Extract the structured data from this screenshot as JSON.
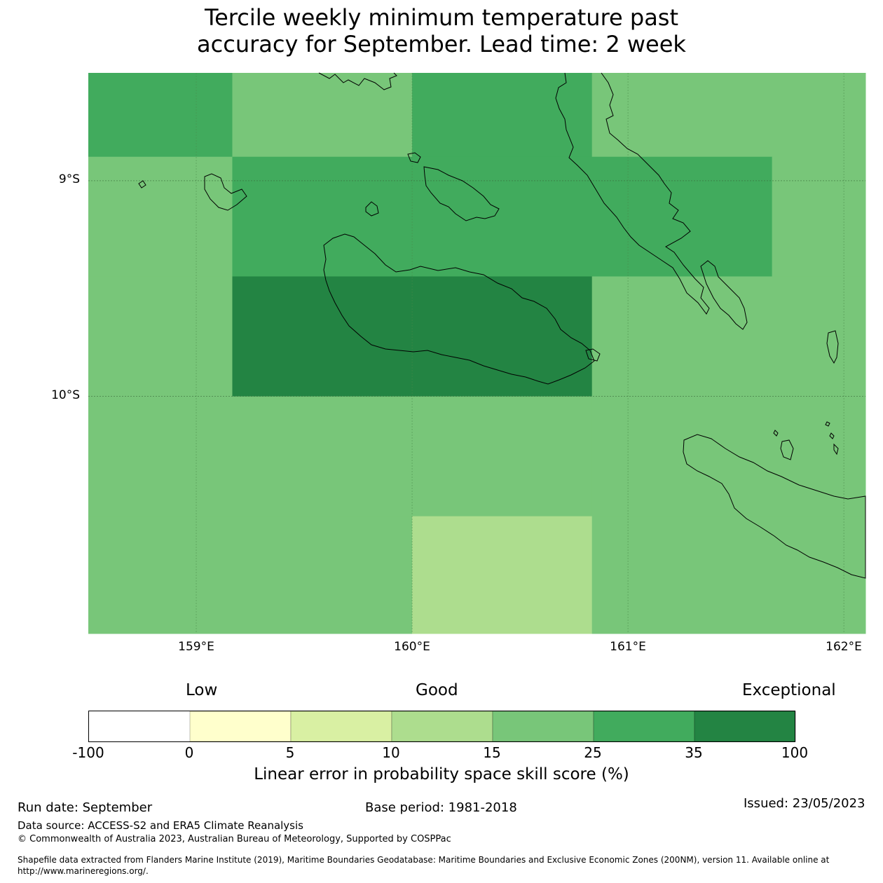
{
  "title": {
    "line1": "Tercile weekly minimum temperature past",
    "line2": "accuracy for September. Lead time: 2 week"
  },
  "map": {
    "lon_range": [
      158.5,
      162.1
    ],
    "lat_range": [
      -11.1,
      -8.5
    ],
    "lat_ticks": [
      {
        "value": -9,
        "label": "9°S"
      },
      {
        "value": -10,
        "label": "10°S"
      }
    ],
    "lon_ticks": [
      {
        "value": 159,
        "label": "159°E"
      },
      {
        "value": 160,
        "label": "160°E"
      },
      {
        "value": 161,
        "label": "161°E"
      },
      {
        "value": 162,
        "label": "162°E"
      }
    ],
    "cells": [
      {
        "lon": [
          158.5,
          159.167
        ],
        "lat": [
          -8.5,
          -8.889
        ],
        "category": 5
      },
      {
        "lon": [
          159.167,
          160.0
        ],
        "lat": [
          -8.5,
          -8.889
        ],
        "category": 4
      },
      {
        "lon": [
          160.0,
          160.833
        ],
        "lat": [
          -8.5,
          -8.889
        ],
        "category": 5
      },
      {
        "lon": [
          160.833,
          162.1
        ],
        "lat": [
          -8.5,
          -8.889
        ],
        "category": 4
      },
      {
        "lon": [
          158.5,
          159.167
        ],
        "lat": [
          -8.889,
          -9.444
        ],
        "category": 4
      },
      {
        "lon": [
          159.167,
          161.667
        ],
        "lat": [
          -8.889,
          -9.444
        ],
        "category": 5
      },
      {
        "lon": [
          161.667,
          162.1
        ],
        "lat": [
          -8.889,
          -9.444
        ],
        "category": 4
      },
      {
        "lon": [
          158.5,
          159.167
        ],
        "lat": [
          -9.444,
          -10.0
        ],
        "category": 4
      },
      {
        "lon": [
          159.167,
          160.833
        ],
        "lat": [
          -9.444,
          -10.0
        ],
        "category": 6
      },
      {
        "lon": [
          160.833,
          162.1
        ],
        "lat": [
          -9.444,
          -10.0
        ],
        "category": 4
      },
      {
        "lon": [
          158.5,
          160.0
        ],
        "lat": [
          -10.0,
          -10.556
        ],
        "category": 4
      },
      {
        "lon": [
          160.0,
          160.833
        ],
        "lat": [
          -10.0,
          -10.556
        ],
        "category": 4
      },
      {
        "lon": [
          160.833,
          162.1
        ],
        "lat": [
          -10.0,
          -10.556
        ],
        "category": 4
      },
      {
        "lon": [
          158.5,
          160.0
        ],
        "lat": [
          -10.556,
          -11.1
        ],
        "category": 4
      },
      {
        "lon": [
          160.0,
          160.833
        ],
        "lat": [
          -10.556,
          -11.1
        ],
        "category": 3
      },
      {
        "lon": [
          160.833,
          162.1
        ],
        "lat": [
          -10.556,
          -11.1
        ],
        "category": 4
      }
    ]
  },
  "chart_data": {
    "type": "heatmap",
    "title": "Tercile weekly minimum temperature past accuracy for September. Lead time: 2 week",
    "xlabel": "",
    "ylabel": "",
    "xlim": [
      158.5,
      162.1
    ],
    "ylim": [
      -11.1,
      -8.5
    ],
    "category_bounds": [
      -100,
      0,
      5,
      10,
      15,
      25,
      35,
      100
    ]
  },
  "colorbar": {
    "category_labels": [
      {
        "text": "Low"
      },
      {
        "text": "Good"
      },
      {
        "text": "Exceptional"
      }
    ],
    "colors": [
      "#ffffff",
      "#ffffcc",
      "#d9f0a3",
      "#addd8e",
      "#78c679",
      "#41ab5d",
      "#238443"
    ],
    "tick_labels": [
      "-100",
      "0",
      "5",
      "10",
      "15",
      "25",
      "35",
      "100"
    ],
    "label": "Linear error in probability space skill score (%)"
  },
  "footer": {
    "run_date": "Run date: September",
    "base_period": "Base period: 1981-2018",
    "issued": "Issued: 23/05/2023",
    "data_source": "Data source: ACCESS-S2 and ERA5 Climate Reanalysis",
    "copyright": "© Commonwealth of Australia 2023, Australian Bureau of Meteorology, Supported by COSPPac",
    "shapefile_line1": "Shapefile data extracted from Flanders Marine Institute (2019), Maritime Boundaries Geodatabase: Maritime Boundaries and Exclusive Economic Zones (200NM), version 11. Available online at",
    "shapefile_line2": "http://www.marineregions.org/."
  }
}
